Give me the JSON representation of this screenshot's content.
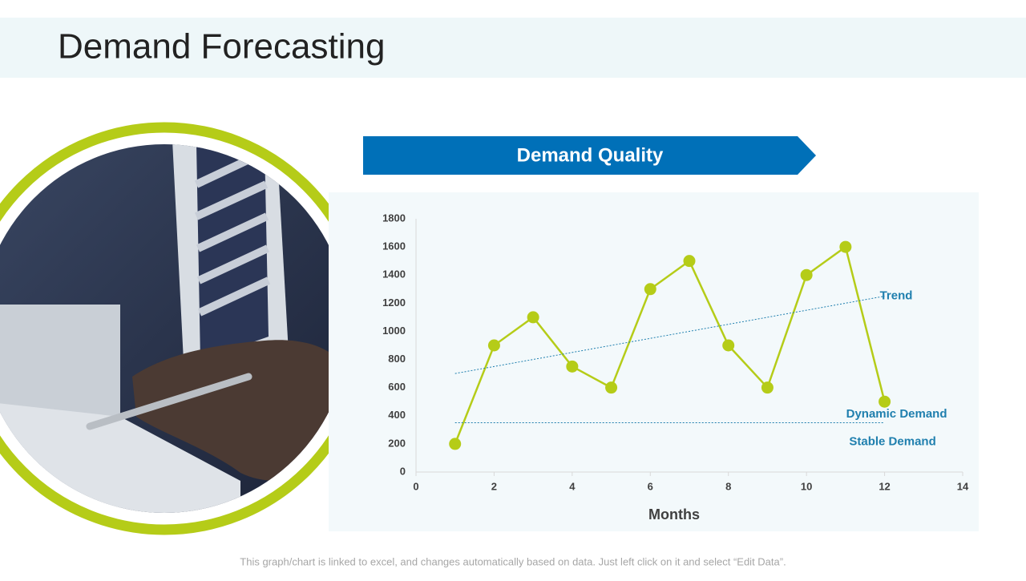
{
  "title": "Demand Forecasting",
  "banner": "Demand Quality",
  "footer": "This graph/chart is linked to excel, and changes automatically based on data. Just left click on it and select “Edit Data”.",
  "chart_data": {
    "type": "line",
    "x_label": "Months",
    "xlim": [
      0,
      14
    ],
    "xticks": [
      0,
      2,
      4,
      6,
      8,
      10,
      12,
      14
    ],
    "ylim": [
      0,
      1800
    ],
    "yticks": [
      0,
      200,
      400,
      600,
      800,
      1000,
      1200,
      1400,
      1600,
      1800
    ],
    "series": [
      {
        "name": "Dynamic Demand",
        "color": "#b5cc18",
        "x": [
          1,
          2,
          3,
          4,
          5,
          6,
          7,
          8,
          9,
          10,
          11,
          12
        ],
        "values": [
          200,
          900,
          1100,
          750,
          600,
          1300,
          1500,
          900,
          600,
          1400,
          1600,
          500
        ]
      },
      {
        "name": "Trend",
        "color": "#1f7fae",
        "x": [
          1,
          12
        ],
        "values": [
          700,
          1250
        ]
      },
      {
        "name": "Stable Demand",
        "color": "#1f7fae",
        "x": [
          1,
          12
        ],
        "values": [
          350,
          350
        ]
      }
    ]
  }
}
